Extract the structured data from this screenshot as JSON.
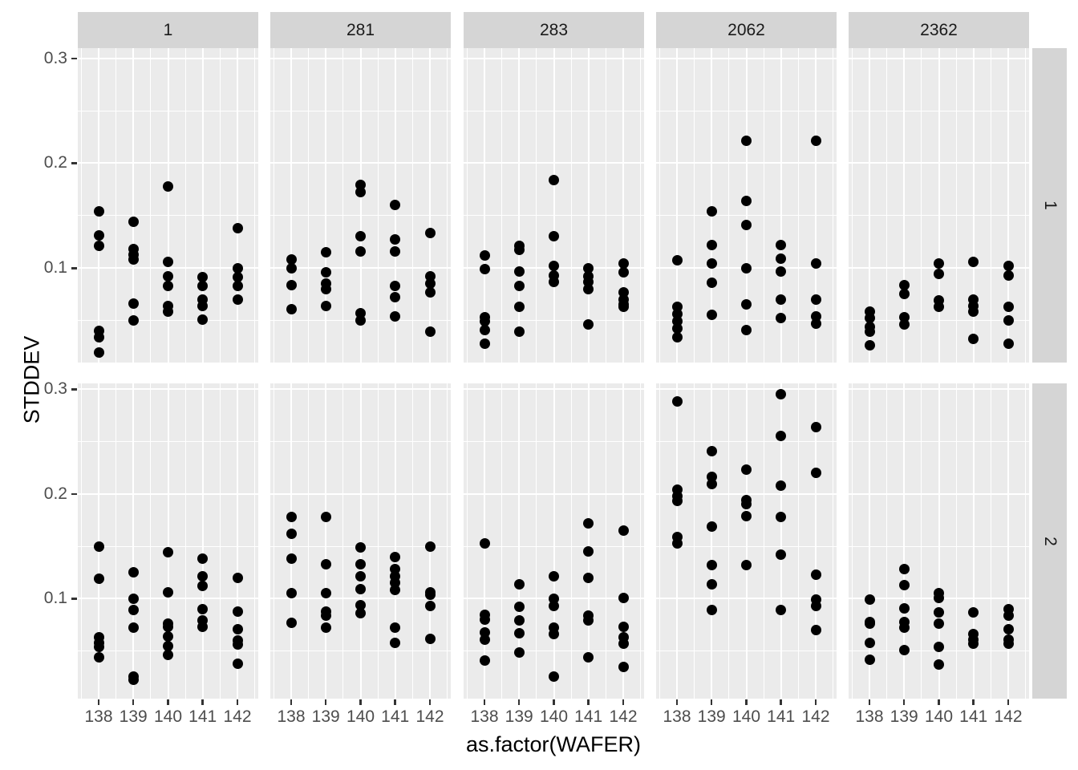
{
  "chart_data": {
    "type": "scatter",
    "title": "",
    "xlabel": "as.factor(WAFER)",
    "ylabel": "STDDEV",
    "x_categories": [
      "138",
      "139",
      "140",
      "141",
      "142"
    ],
    "y_ticks": [
      0.3,
      0.2,
      0.1
    ],
    "y_tick_labels": [
      "0.3",
      "0.2",
      "0.1"
    ],
    "ylim": [
      0.01,
      0.31
    ],
    "grid": {
      "major_y": [
        0.1,
        0.2,
        0.3
      ],
      "minor_y": [
        0.05,
        0.15,
        0.25
      ],
      "gridlines": "white on grey panel"
    },
    "legend": "none",
    "facets": {
      "columns": [
        "1",
        "281",
        "283",
        "2062",
        "2362"
      ],
      "rows": [
        "1",
        "2"
      ]
    },
    "style": {
      "panel_bg": "#EBEBEB",
      "strip_bg": "#D5D5D5",
      "grid_color": "#FFFFFF",
      "point_color": "#000000",
      "tick_text_color": "#4D4D4D",
      "axis_title_color": "#000000"
    },
    "panels": [
      {
        "row": "1",
        "col": "1",
        "series": {
          "138": [
            0.154,
            0.131,
            0.121,
            0.04,
            0.034,
            0.019
          ],
          "139": [
            0.144,
            0.118,
            0.113,
            0.108,
            0.066,
            0.05
          ],
          "140": [
            0.178,
            0.106,
            0.092,
            0.083,
            0.064,
            0.058
          ],
          "141": [
            0.091,
            0.083,
            0.07,
            0.064,
            0.051
          ],
          "142": [
            0.138,
            0.1,
            0.091,
            0.083,
            0.07
          ]
        }
      },
      {
        "row": "1",
        "col": "281",
        "series": {
          "138": [
            0.108,
            0.1,
            0.084,
            0.061
          ],
          "139": [
            0.115,
            0.096,
            0.085,
            0.08,
            0.064
          ],
          "140": [
            0.179,
            0.172,
            0.13,
            0.116,
            0.057,
            0.05
          ],
          "141": [
            0.16,
            0.127,
            0.116,
            0.083,
            0.072,
            0.054
          ],
          "142": [
            0.133,
            0.092,
            0.085,
            0.077,
            0.039
          ]
        }
      },
      {
        "row": "1",
        "col": "283",
        "series": {
          "138": [
            0.112,
            0.099,
            0.053,
            0.049,
            0.041,
            0.028
          ],
          "139": [
            0.121,
            0.117,
            0.097,
            0.083,
            0.063,
            0.039
          ],
          "140": [
            0.184,
            0.13,
            0.102,
            0.093,
            0.087
          ],
          "141": [
            0.1,
            0.092,
            0.087,
            0.08,
            0.046
          ],
          "142": [
            0.104,
            0.096,
            0.077,
            0.07,
            0.065,
            0.063
          ]
        }
      },
      {
        "row": "1",
        "col": "2062",
        "series": {
          "138": [
            0.107,
            0.063,
            0.056,
            0.049,
            0.042,
            0.034
          ],
          "139": [
            0.154,
            0.122,
            0.104,
            0.086,
            0.055
          ],
          "140": [
            0.221,
            0.164,
            0.141,
            0.1,
            0.065,
            0.041
          ],
          "141": [
            0.122,
            0.109,
            0.097,
            0.07,
            0.052
          ],
          "142": [
            0.221,
            0.104,
            0.07,
            0.054,
            0.047
          ]
        }
      },
      {
        "row": "1",
        "col": "2362",
        "series": {
          "138": [
            0.058,
            0.052,
            0.044,
            0.039,
            0.026
          ],
          "139": [
            0.084,
            0.075,
            0.053,
            0.046
          ],
          "140": [
            0.104,
            0.094,
            0.069,
            0.063
          ],
          "141": [
            0.106,
            0.07,
            0.064,
            0.058,
            0.032
          ],
          "142": [
            0.102,
            0.093,
            0.063,
            0.05,
            0.028
          ]
        }
      },
      {
        "row": "2",
        "col": "1",
        "series": {
          "138": [
            0.15,
            0.119,
            0.063,
            0.058,
            0.054,
            0.044
          ],
          "139": [
            0.125,
            0.1,
            0.089,
            0.072,
            0.026,
            0.023
          ],
          "140": [
            0.144,
            0.106,
            0.076,
            0.073,
            0.064,
            0.055,
            0.046
          ],
          "141": [
            0.138,
            0.121,
            0.112,
            0.09,
            0.079,
            0.073
          ],
          "142": [
            0.12,
            0.088,
            0.071,
            0.06,
            0.056,
            0.038
          ]
        }
      },
      {
        "row": "2",
        "col": "281",
        "series": {
          "138": [
            0.178,
            0.162,
            0.138,
            0.105,
            0.077
          ],
          "139": [
            0.178,
            0.133,
            0.105,
            0.088,
            0.084,
            0.072
          ],
          "140": [
            0.149,
            0.133,
            0.121,
            0.109,
            0.094,
            0.086
          ],
          "141": [
            0.14,
            0.128,
            0.121,
            0.115,
            0.108,
            0.072,
            0.058
          ],
          "142": [
            0.15,
            0.106,
            0.104,
            0.093,
            0.062
          ]
        }
      },
      {
        "row": "2",
        "col": "283",
        "series": {
          "138": [
            0.153,
            0.085,
            0.08,
            0.068,
            0.061,
            0.041
          ],
          "139": [
            0.114,
            0.092,
            0.079,
            0.067,
            0.049
          ],
          "140": [
            0.121,
            0.1,
            0.093,
            0.072,
            0.066,
            0.026
          ],
          "141": [
            0.172,
            0.145,
            0.12,
            0.084,
            0.079,
            0.044
          ],
          "142": [
            0.165,
            0.101,
            0.073,
            0.063,
            0.057,
            0.035
          ]
        }
      },
      {
        "row": "2",
        "col": "2062",
        "series": {
          "138": [
            0.288,
            0.204,
            0.198,
            0.193,
            0.159,
            0.153
          ],
          "139": [
            0.241,
            0.216,
            0.209,
            0.169,
            0.132,
            0.114,
            0.089
          ],
          "140": [
            0.223,
            0.194,
            0.19,
            0.179,
            0.132
          ],
          "141": [
            0.295,
            0.255,
            0.208,
            0.178,
            0.142,
            0.089
          ],
          "142": [
            0.264,
            0.22,
            0.123,
            0.099,
            0.093,
            0.07
          ]
        }
      },
      {
        "row": "2",
        "col": "2362",
        "series": {
          "138": [
            0.099,
            0.078,
            0.076,
            0.058,
            0.042
          ],
          "139": [
            0.128,
            0.113,
            0.091,
            0.078,
            0.072,
            0.051
          ],
          "140": [
            0.105,
            0.101,
            0.087,
            0.076,
            0.054,
            0.037
          ],
          "141": [
            0.087,
            0.066,
            0.061,
            0.057
          ],
          "142": [
            0.09,
            0.084,
            0.071,
            0.061,
            0.057
          ]
        }
      }
    ]
  }
}
